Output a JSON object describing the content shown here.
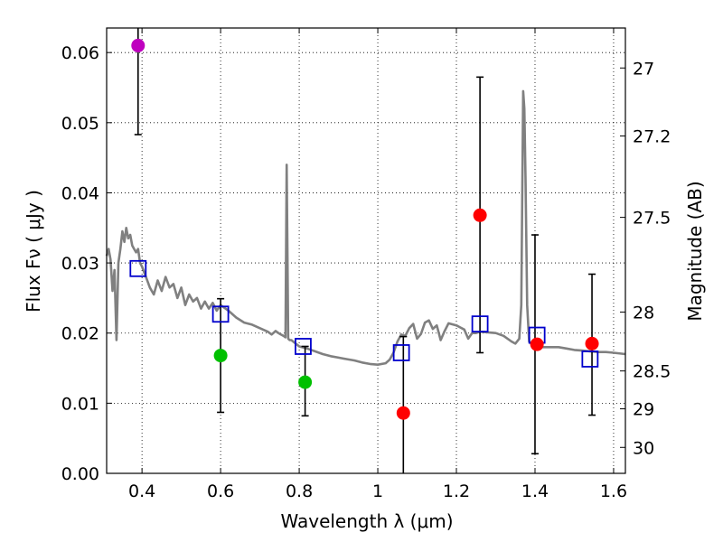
{
  "chart_data": {
    "type": "scatter",
    "xlabel": "Wavelength  λ (μm)",
    "ylabel": "Flux  Fν  ( μJy )",
    "ylabel_right": "Magnitude (AB)",
    "xlim": [
      0.31,
      1.63
    ],
    "ylim": [
      0.0,
      0.0635
    ],
    "grid": true,
    "x_ticks": [
      0.4,
      0.6,
      0.8,
      1.0,
      1.2,
      1.4,
      1.6
    ],
    "x_tick_labels": [
      "0.4",
      "0.6",
      "0.8",
      "1",
      "1.2",
      "1.4",
      "1.6"
    ],
    "y_ticks": [
      0.0,
      0.01,
      0.02,
      0.03,
      0.04,
      0.05,
      0.06
    ],
    "y_tick_labels": [
      "0.00",
      "0.01",
      "0.02",
      "0.03",
      "0.04",
      "0.05",
      "0.06"
    ],
    "right_ticks": [
      {
        "label": "27",
        "flux": 0.0578
      },
      {
        "label": "27.2",
        "flux": 0.0481
      },
      {
        "label": "27.5",
        "flux": 0.0365
      },
      {
        "label": "28",
        "flux": 0.023
      },
      {
        "label": "28.5",
        "flux": 0.0146
      },
      {
        "label": "29",
        "flux": 0.0092
      },
      {
        "label": "30",
        "flux": 0.0037
      }
    ],
    "model_spectrum": {
      "name": "SED model",
      "color": "#808080",
      "x": [
        0.31,
        0.315,
        0.32,
        0.325,
        0.33,
        0.335,
        0.34,
        0.345,
        0.35,
        0.355,
        0.36,
        0.365,
        0.37,
        0.375,
        0.38,
        0.385,
        0.39,
        0.395,
        0.4,
        0.41,
        0.42,
        0.43,
        0.44,
        0.45,
        0.46,
        0.47,
        0.48,
        0.49,
        0.5,
        0.51,
        0.52,
        0.53,
        0.54,
        0.55,
        0.56,
        0.57,
        0.58,
        0.59,
        0.6,
        0.62,
        0.64,
        0.66,
        0.68,
        0.7,
        0.72,
        0.73,
        0.74,
        0.75,
        0.76,
        0.765,
        0.768,
        0.772,
        0.776,
        0.78,
        0.8,
        0.82,
        0.84,
        0.86,
        0.88,
        0.9,
        0.92,
        0.94,
        0.96,
        0.98,
        1.0,
        1.02,
        1.03,
        1.04,
        1.05,
        1.06,
        1.07,
        1.08,
        1.09,
        1.1,
        1.11,
        1.12,
        1.13,
        1.14,
        1.15,
        1.16,
        1.17,
        1.18,
        1.2,
        1.22,
        1.23,
        1.24,
        1.25,
        1.26,
        1.28,
        1.3,
        1.32,
        1.34,
        1.35,
        1.36,
        1.365,
        1.37,
        1.373,
        1.376,
        1.38,
        1.385,
        1.39,
        1.4,
        1.42,
        1.44,
        1.46,
        1.48,
        1.5,
        1.52,
        1.54,
        1.56,
        1.58,
        1.6,
        1.63
      ],
      "y": [
        0.031,
        0.032,
        0.0305,
        0.026,
        0.029,
        0.019,
        0.03,
        0.032,
        0.0345,
        0.033,
        0.035,
        0.0335,
        0.034,
        0.0325,
        0.032,
        0.0315,
        0.032,
        0.03,
        0.0295,
        0.028,
        0.0265,
        0.0255,
        0.0275,
        0.026,
        0.028,
        0.0265,
        0.027,
        0.025,
        0.0265,
        0.024,
        0.0255,
        0.0245,
        0.025,
        0.0235,
        0.0245,
        0.0235,
        0.0243,
        0.0232,
        0.024,
        0.0232,
        0.0222,
        0.0215,
        0.0212,
        0.0207,
        0.0202,
        0.0198,
        0.0203,
        0.0199,
        0.0196,
        0.0194,
        0.044,
        0.0192,
        0.019,
        0.019,
        0.0181,
        0.0178,
        0.0174,
        0.017,
        0.0167,
        0.0165,
        0.0163,
        0.0161,
        0.0158,
        0.0156,
        0.0155,
        0.0157,
        0.0162,
        0.0172,
        0.0188,
        0.0198,
        0.0196,
        0.0207,
        0.0213,
        0.0192,
        0.0199,
        0.0215,
        0.0218,
        0.0206,
        0.0211,
        0.019,
        0.0203,
        0.0214,
        0.0211,
        0.0205,
        0.0192,
        0.02,
        0.02,
        0.0202,
        0.0201,
        0.02,
        0.0196,
        0.0188,
        0.0185,
        0.0192,
        0.024,
        0.0545,
        0.052,
        0.042,
        0.024,
        0.0188,
        0.0185,
        0.0183,
        0.018,
        0.018,
        0.018,
        0.0178,
        0.0176,
        0.0175,
        0.0174,
        0.0173,
        0.0173,
        0.0172,
        0.017
      ]
    },
    "model_points": {
      "name": "model photometry",
      "marker": "open-square",
      "color": "#0000cc",
      "x": [
        0.39,
        0.6,
        0.81,
        1.06,
        1.26,
        1.405,
        1.54
      ],
      "y": [
        0.0292,
        0.0227,
        0.0181,
        0.0172,
        0.0213,
        0.0197,
        0.0163
      ]
    },
    "error_bars": {
      "color": "#000000",
      "items": [
        {
          "x": 0.39,
          "low": 0.0483,
          "high": 0.0635
        },
        {
          "x": 0.6,
          "low": 0.0087,
          "high": 0.0249
        },
        {
          "x": 0.815,
          "low": 0.0082,
          "high": 0.0181
        },
        {
          "x": 1.065,
          "low": 0.0,
          "high": 0.0195
        },
        {
          "x": 1.26,
          "low": 0.0172,
          "high": 0.0565
        },
        {
          "x": 1.4,
          "low": 0.0028,
          "high": 0.034
        },
        {
          "x": 1.545,
          "low": 0.0083,
          "high": 0.0284
        }
      ]
    },
    "series": [
      {
        "name": "violet",
        "color": "#bf00bf",
        "x": [
          0.39
        ],
        "y": [
          0.061
        ]
      },
      {
        "name": "green",
        "color": "#00c000",
        "x": [
          0.6,
          0.815
        ],
        "y": [
          0.0168,
          0.013
        ]
      },
      {
        "name": "red",
        "color": "#ff0000",
        "x": [
          1.065,
          1.26,
          1.405,
          1.545
        ],
        "y": [
          0.0086,
          0.0368,
          0.0184,
          0.0185
        ]
      }
    ]
  }
}
